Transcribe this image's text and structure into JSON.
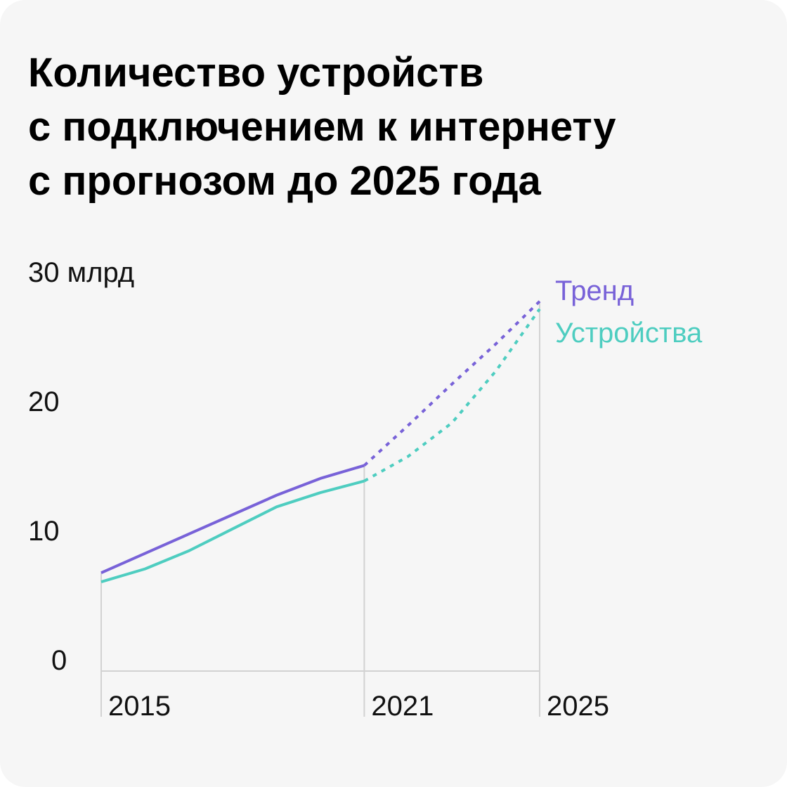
{
  "chart_data": {
    "type": "line",
    "title": [
      "Количество устройств",
      "с подключением к интернету",
      "с прогнозом до 2025 года"
    ],
    "x": [
      2015,
      2016,
      2017,
      2018,
      2019,
      2020,
      2021,
      2022,
      2023,
      2024,
      2025
    ],
    "series": [
      {
        "name": "Тренд",
        "color": "#7862d8",
        "values": [
          7.6,
          9.1,
          10.6,
          12.1,
          13.6,
          14.9,
          15.9,
          19.0,
          22.2,
          25.3,
          28.6
        ]
      },
      {
        "name": "Устройства",
        "color": "#4ecdc0",
        "values": [
          6.9,
          7.9,
          9.3,
          11.0,
          12.7,
          13.8,
          14.7,
          16.6,
          19.2,
          23.2,
          28.0
        ]
      }
    ],
    "forecast_from": 2021,
    "xlim": [
      2015,
      2025
    ],
    "xticks": [
      2015,
      2021,
      2025
    ],
    "ylim": [
      0,
      30
    ],
    "yticks": [
      0,
      10,
      20,
      {
        "value": 30,
        "label": "30 млрд"
      }
    ],
    "legend": "right"
  }
}
